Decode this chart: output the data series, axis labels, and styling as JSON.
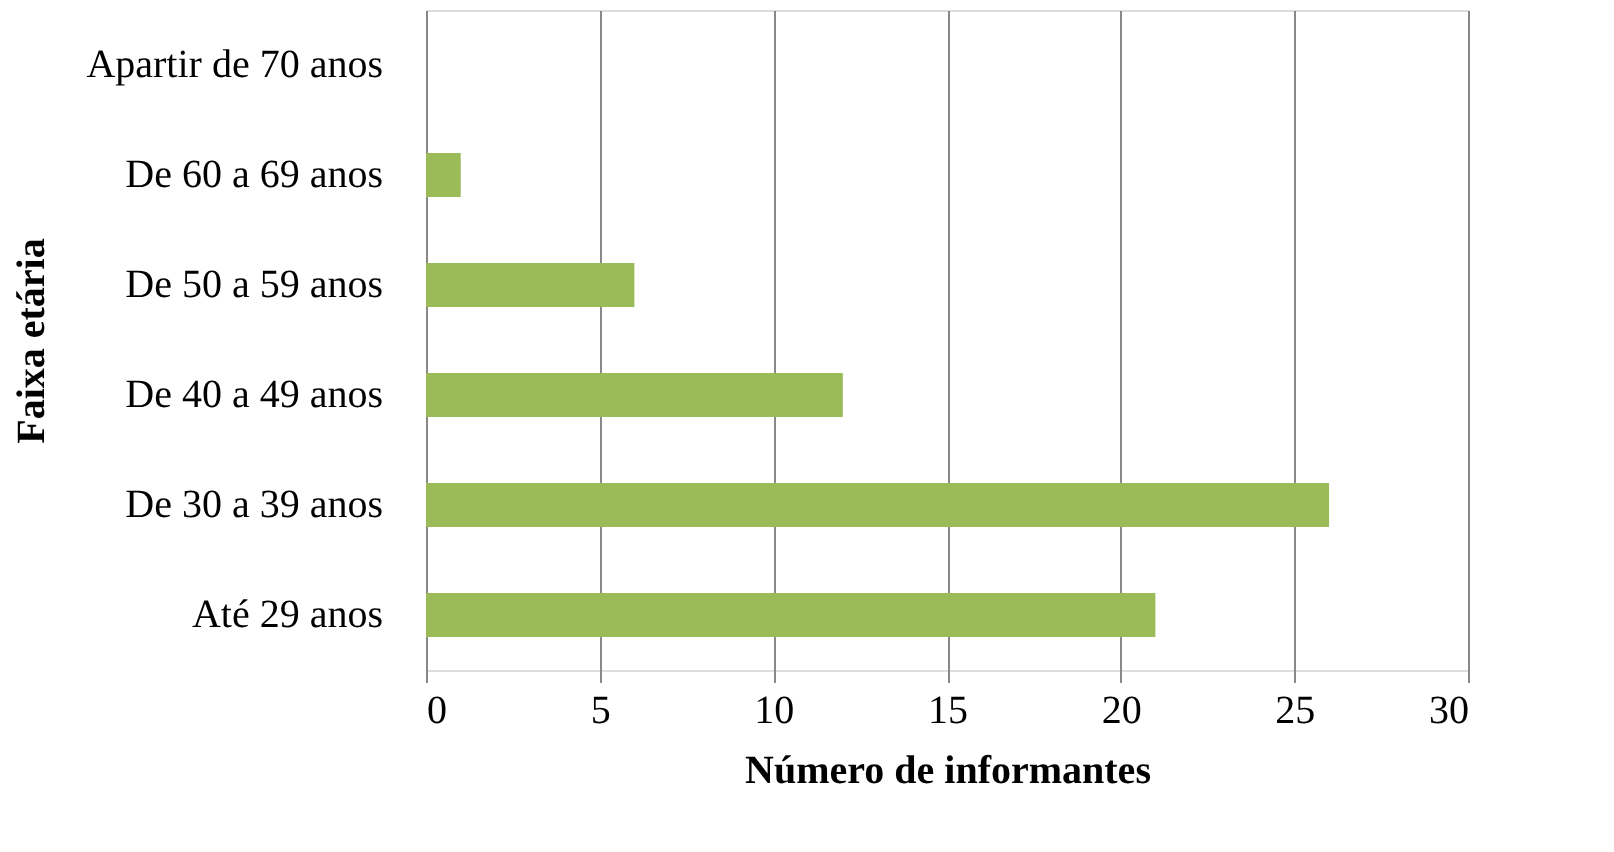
{
  "chart_data": {
    "type": "bar",
    "orientation": "horizontal",
    "xlabel": "Número de informantes",
    "ylabel": "Faixa etária",
    "categories": [
      "Apartir  de 70 anos",
      "De 60 a 69 anos",
      "De 50 a 59 anos",
      "De 40 a 49 anos",
      "De 30 a 39 anos",
      "Até 29 anos"
    ],
    "values": [
      0,
      1,
      6,
      12,
      26,
      21
    ],
    "color": "#9bbb59",
    "xlim": [
      0,
      30
    ],
    "xticks": [
      0,
      5,
      10,
      15,
      20,
      25,
      30
    ],
    "grid": "x"
  }
}
